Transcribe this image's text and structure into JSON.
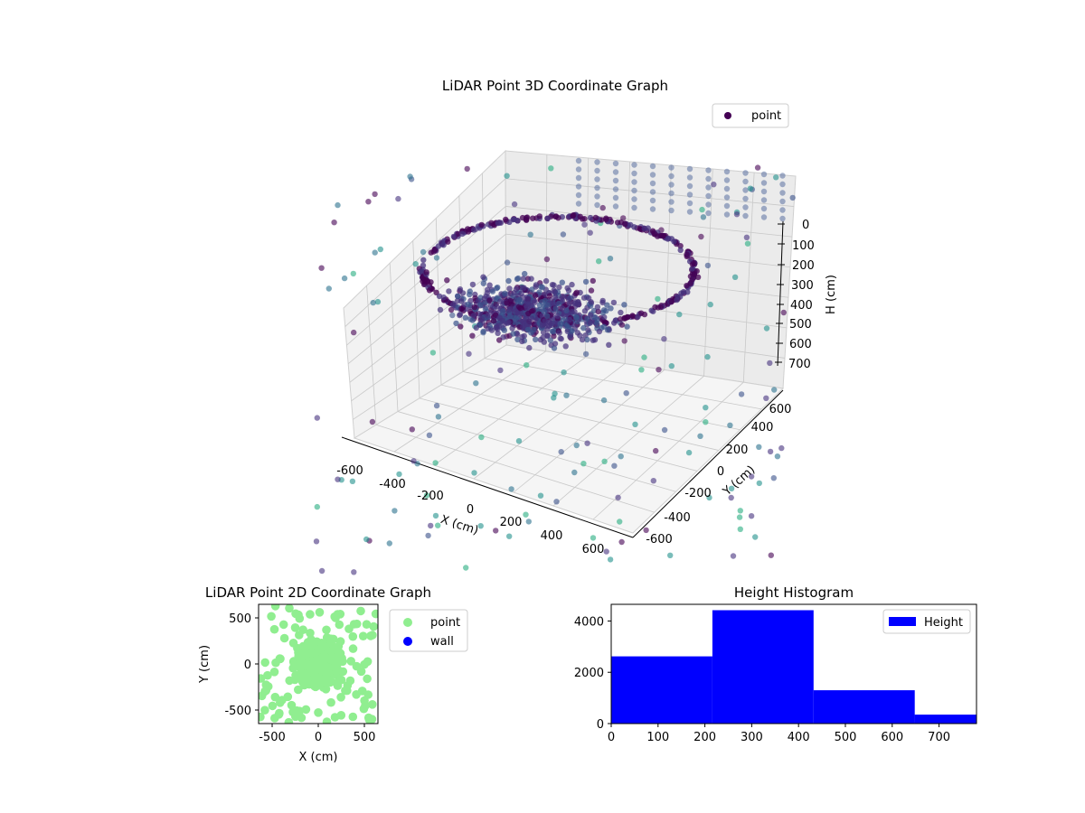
{
  "chart_data": [
    {
      "type": "scatter3d",
      "title": "LiDAR Point 3D Coordinate Graph",
      "xlabel": "X (cm)",
      "ylabel": "Y (cm)",
      "zlabel": "H (cm)",
      "xticks": [
        "-600",
        "-400",
        "-200",
        "0",
        "200",
        "400",
        "600"
      ],
      "yticks": [
        "-600",
        "-400",
        "-200",
        "0",
        "200",
        "400",
        "600"
      ],
      "zticks": [
        "0",
        "100",
        "200",
        "300",
        "400",
        "500",
        "600",
        "700"
      ],
      "xlim": [
        -650,
        650
      ],
      "ylim": [
        -650,
        650
      ],
      "zlim": [
        0,
        780
      ],
      "z_inverted": true,
      "legend": [
        {
          "label": "point",
          "color": "#440154"
        }
      ],
      "legend_position": "upper-right",
      "colormap": "viridis",
      "grid": true
    },
    {
      "type": "scatter",
      "title": "LiDAR Point 2D Coordinate Graph",
      "xlabel": "X (cm)",
      "ylabel": "Y (cm)",
      "xticks": [
        "-500",
        "0",
        "500"
      ],
      "yticks": [
        "500",
        "0",
        "-500"
      ],
      "xlim": [
        -650,
        650
      ],
      "ylim": [
        -650,
        650
      ],
      "series": [
        {
          "name": "point",
          "color": "#90ee90"
        },
        {
          "name": "wall",
          "color": "#0000ff"
        }
      ],
      "legend_position": "outside-right"
    },
    {
      "type": "bar",
      "title": "Height Histogram",
      "xticks": [
        "0",
        "100",
        "200",
        "300",
        "400",
        "500",
        "600",
        "700"
      ],
      "yticks": [
        "0",
        "2000",
        "4000"
      ],
      "xlim": [
        0,
        780
      ],
      "ylim": [
        0,
        4650
      ],
      "bin_edges": [
        0,
        216,
        432,
        648,
        780
      ],
      "values": [
        2620,
        4420,
        1300,
        350
      ],
      "series": [
        {
          "name": "Height",
          "color": "#0000ff"
        }
      ],
      "legend_position": "upper-right"
    }
  ]
}
